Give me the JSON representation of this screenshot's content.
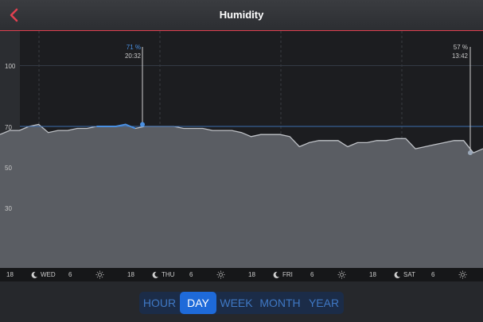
{
  "header": {
    "title": "Humidity"
  },
  "chart_data": {
    "type": "area",
    "title": "Humidity",
    "ylabel": "%",
    "yticks": [
      "100",
      "70",
      "50",
      "30"
    ],
    "ylim": [
      0,
      120
    ],
    "reference_line": 70,
    "series": [
      {
        "name": "humidity",
        "values": [
          66,
          68,
          68,
          70,
          71,
          67,
          68,
          68,
          69,
          69,
          70,
          70,
          70,
          71,
          69,
          70,
          70,
          70,
          70,
          69,
          69,
          69,
          68,
          68,
          68,
          67,
          65,
          66,
          66,
          66,
          65,
          60,
          62,
          63,
          63,
          63,
          60,
          62,
          62,
          63,
          63,
          64,
          64,
          59,
          60,
          61,
          62,
          63,
          63,
          57,
          59
        ]
      }
    ],
    "markers": [
      {
        "label_value": "71 %",
        "label_time": "20:32",
        "value": 71
      },
      {
        "label_value": "57 %",
        "label_time": "13:42",
        "value": 57
      }
    ]
  },
  "timebar": {
    "ticks": [
      {
        "text": "18",
        "icon": "none"
      },
      {
        "text": "WED",
        "icon": "moon-icon"
      },
      {
        "text": "6",
        "icon": "none"
      },
      {
        "text": "",
        "icon": "sun-icon"
      },
      {
        "text": "18",
        "icon": "none"
      },
      {
        "text": "THU",
        "icon": "moon-icon"
      },
      {
        "text": "6",
        "icon": "none"
      },
      {
        "text": "",
        "icon": "sun-icon"
      },
      {
        "text": "18",
        "icon": "none"
      },
      {
        "text": "FRI",
        "icon": "moon-icon"
      },
      {
        "text": "6",
        "icon": "none"
      },
      {
        "text": "",
        "icon": "sun-icon"
      },
      {
        "text": "18",
        "icon": "none"
      },
      {
        "text": "SAT",
        "icon": "moon-icon"
      },
      {
        "text": "6",
        "icon": "none"
      },
      {
        "text": "",
        "icon": "sun-icon"
      }
    ]
  },
  "tabs": [
    {
      "label": "HOUR",
      "active": false
    },
    {
      "label": "DAY",
      "active": true
    },
    {
      "label": "WEEK",
      "active": false
    },
    {
      "label": "MONTH",
      "active": false
    },
    {
      "label": "YEAR",
      "active": false
    }
  ],
  "colors": {
    "accent": "#e04050",
    "line": "#4a90e2",
    "active_tab": "#1e6ad9"
  }
}
